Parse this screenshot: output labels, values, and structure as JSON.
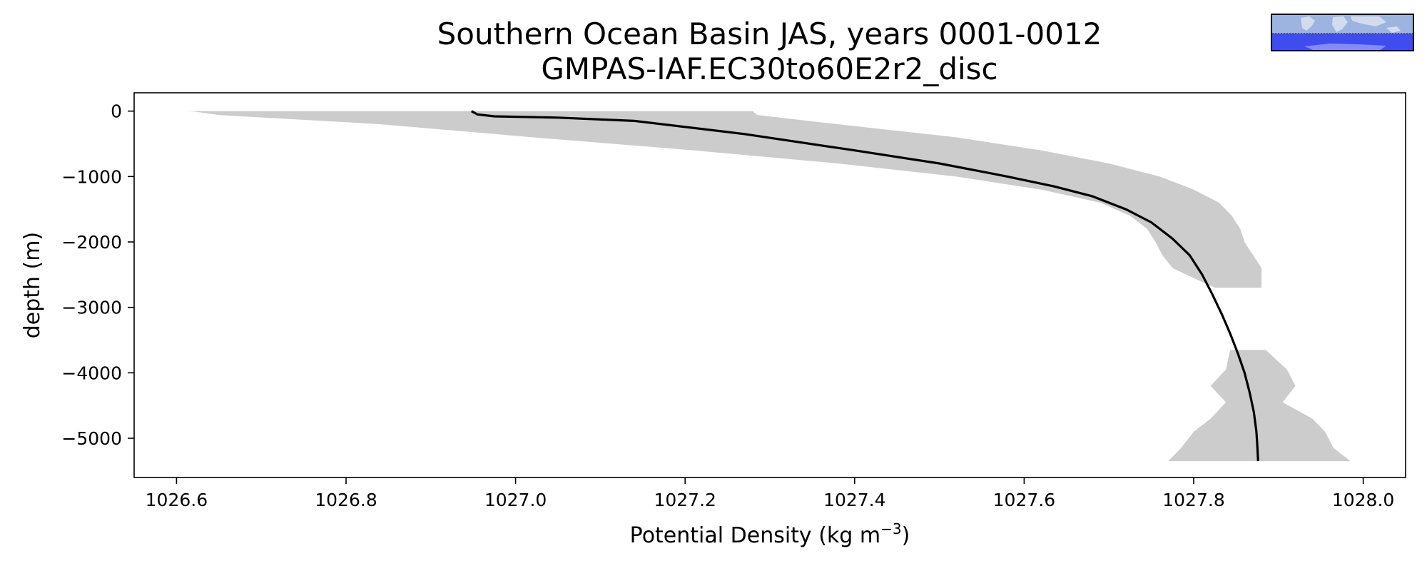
{
  "title_line1": "Southern Ocean Basin JAS, years 0001-0012",
  "title_line2": "GMPAS-IAF.EC30to60E2r2_disc",
  "inset_map": {
    "name": "region-map-inset",
    "ocean_color": "#5b6cf0",
    "land_color": "#d8e0f0",
    "band_color": "#3f4cee",
    "upper_color": "#9db3e0"
  },
  "chart_data": {
    "type": "line",
    "title": "Southern Ocean Basin JAS, years 0001-0012\nGMPAS-IAF.EC30to60E2r2_disc",
    "xlabel_main": "Potential Density (kg m",
    "xlabel_sup": "−3",
    "xlabel_close": ")",
    "ylabel": "depth (m)",
    "xlim": [
      1026.55,
      1028.05
    ],
    "ylim": [
      -5600,
      280
    ],
    "xticks": [
      1026.6,
      1026.8,
      1027.0,
      1027.2,
      1027.4,
      1027.6,
      1027.8,
      1028.0
    ],
    "xtick_labels": [
      "1026.6",
      "1026.8",
      "1027.0",
      "1027.2",
      "1027.4",
      "1027.6",
      "1027.8",
      "1028.0"
    ],
    "yticks": [
      0,
      -1000,
      -2000,
      -3000,
      -4000,
      -5000
    ],
    "ytick_labels": [
      "0",
      "−1000",
      "−2000",
      "−3000",
      "−4000",
      "−5000"
    ],
    "grid": false,
    "line_color": "#000000",
    "band_color": "#cccccc",
    "series": [
      {
        "kind": "line",
        "x": [
          1026.948,
          1026.955,
          1026.975,
          1027.05,
          1027.14,
          1027.27,
          1027.4,
          1027.5,
          1027.58,
          1027.635,
          1027.68,
          1027.72,
          1027.75,
          1027.775,
          1027.795,
          1027.81,
          1027.822,
          1027.833,
          1027.843,
          1027.852,
          1027.86,
          1027.866,
          1027.871,
          1027.874,
          1027.875,
          1027.876
        ],
        "y": [
          0,
          -50,
          -80,
          -100,
          -150,
          -350,
          -600,
          -800,
          -1000,
          -1150,
          -1300,
          -1500,
          -1700,
          -1950,
          -2200,
          -2500,
          -2800,
          -3100,
          -3400,
          -3700,
          -4000,
          -4300,
          -4600,
          -4900,
          -5100,
          -5350
        ]
      },
      {
        "kind": "band",
        "segments": [
          {
            "y": [
              0,
              -5,
              -60,
              -200,
              -400,
              -600,
              -800,
              -1000,
              -1200,
              -1400,
              -1600,
              -1800,
              -2000,
              -2200,
              -2400,
              -2600,
              -2700
            ],
            "lower": [
              1026.61,
              1026.62,
              1026.65,
              1026.84,
              1027.02,
              1027.21,
              1027.38,
              1027.52,
              1027.62,
              1027.69,
              1027.725,
              1027.745,
              1027.755,
              1027.763,
              1027.775,
              1027.808,
              1027.825
            ],
            "upper": [
              1027.28,
              1027.28,
              1027.285,
              1027.38,
              1027.52,
              1027.62,
              1027.7,
              1027.76,
              1027.8,
              1027.83,
              1027.845,
              1027.855,
              1027.86,
              1027.87,
              1027.88,
              1027.88,
              1027.88
            ]
          },
          {
            "y": [
              -3650,
              -3950,
              -4200,
              -4450,
              -4700,
              -4900,
              -5150,
              -5350
            ],
            "lower": [
              1027.843,
              1027.838,
              1027.82,
              1027.838,
              1027.82,
              1027.8,
              1027.785,
              1027.77
            ],
            "upper": [
              1027.885,
              1027.91,
              1027.92,
              1027.905,
              1027.94,
              1027.955,
              1027.965,
              1027.985
            ]
          }
        ]
      }
    ]
  }
}
